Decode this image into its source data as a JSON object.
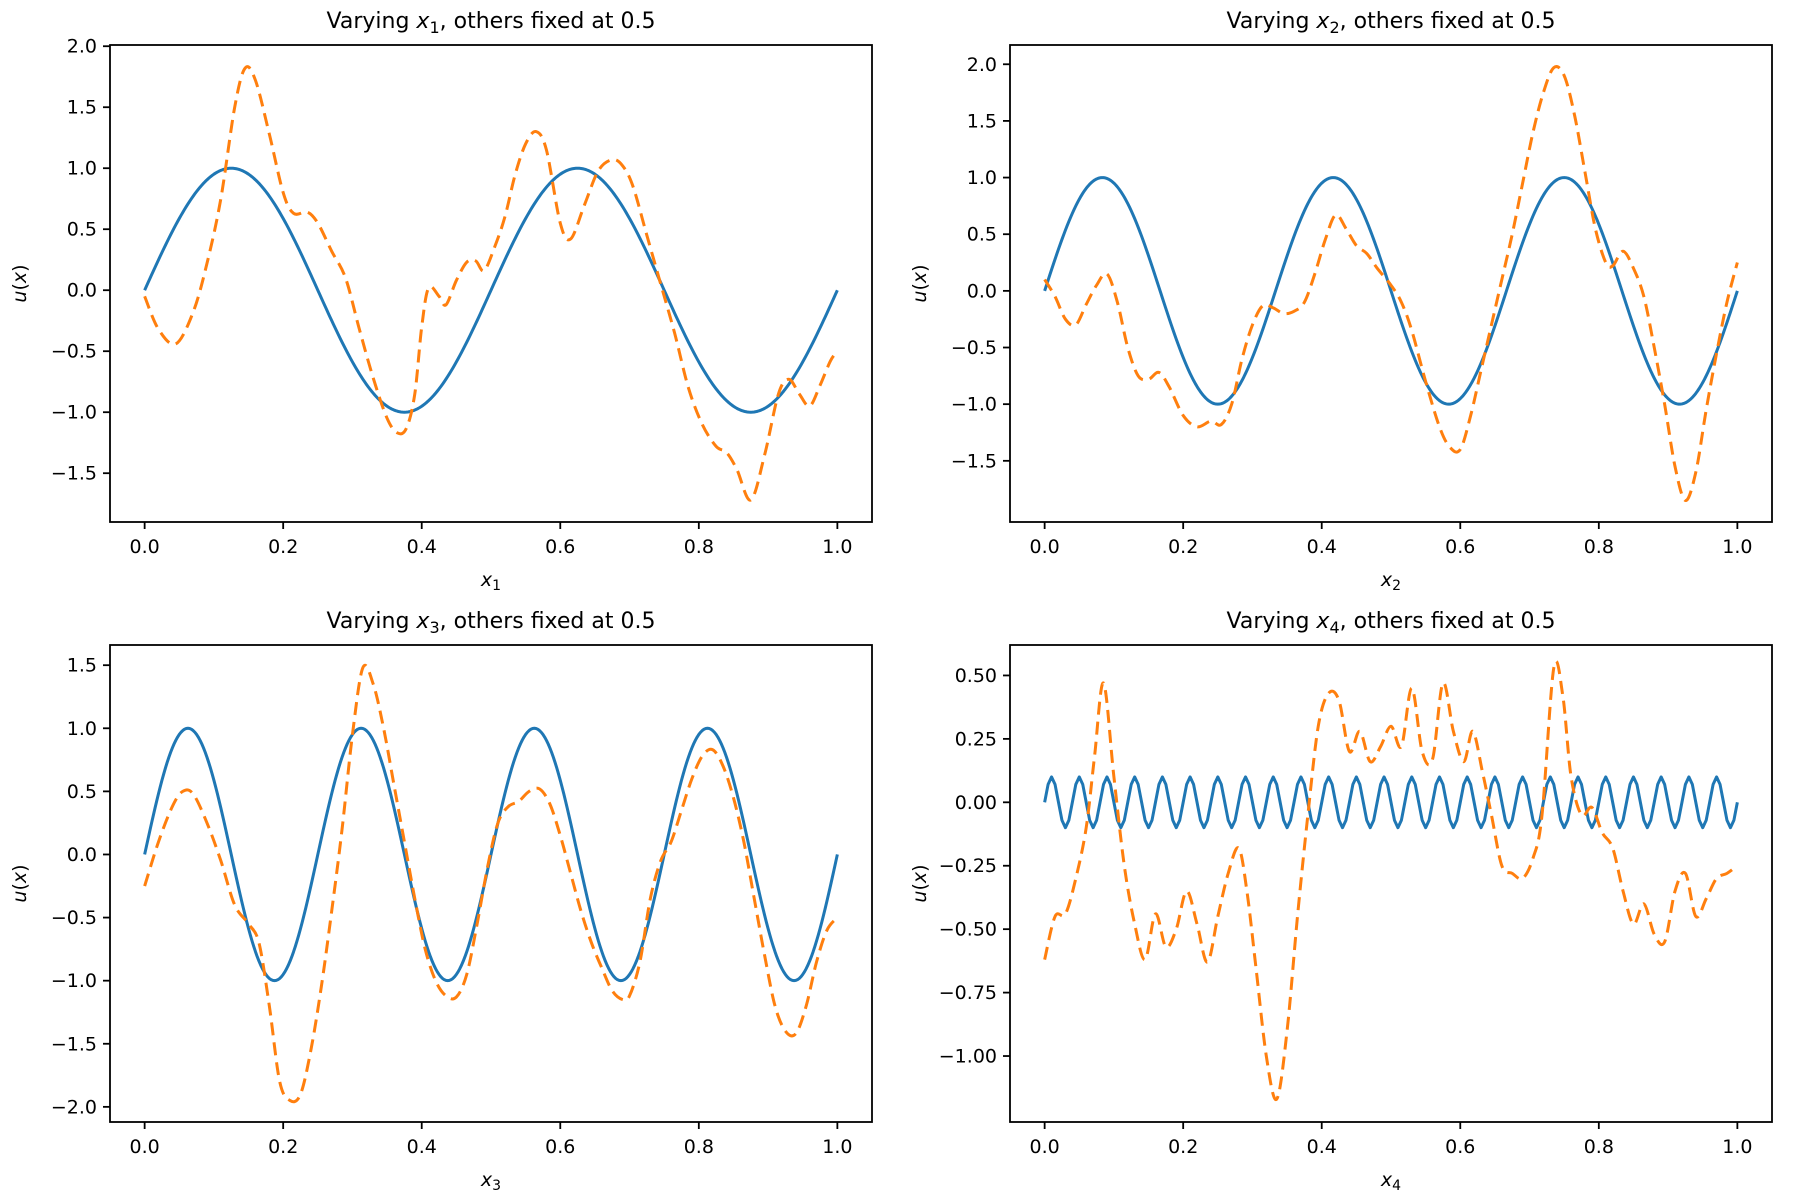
{
  "figure": {
    "background": "#ffffff",
    "axis_color": "#000000",
    "text_color": "#000000",
    "line_colors": {
      "solid": "#1f77b4",
      "dashed": "#ff7f0e"
    }
  },
  "chart_data": [
    {
      "type": "line",
      "title": {
        "prefix": "Varying ",
        "variable": "x",
        "subscript": "1",
        "suffix": ", others fixed at 0.5"
      },
      "xlabel": {
        "variable": "x",
        "subscript": "1"
      },
      "ylabel": "u(x)",
      "xlim": [
        -0.05,
        1.05
      ],
      "ylim": [
        -1.9,
        2.01
      ],
      "xticks": [
        0.0,
        0.2,
        0.4,
        0.6,
        0.8,
        1.0
      ],
      "yticks": [
        -1.5,
        -1.0,
        -0.5,
        0.0,
        0.5,
        1.0,
        1.5,
        2.0
      ],
      "ytick_decimals": 1,
      "grid": false,
      "legend": null,
      "series": [
        {
          "id": "solid-blue-line",
          "style": "solid",
          "color": "#1f77b4",
          "kind": "sine",
          "amplitude": 1,
          "cycles": 2,
          "samples": 401
        },
        {
          "id": "dashed-orange-line",
          "style": "dashed",
          "color": "#ff7f0e",
          "kind": "points",
          "x": [
            0.0,
            0.02,
            0.045,
            0.07,
            0.09,
            0.11,
            0.13,
            0.145,
            0.16,
            0.18,
            0.2,
            0.215,
            0.235,
            0.25,
            0.27,
            0.29,
            0.31,
            0.33,
            0.35,
            0.365,
            0.378,
            0.39,
            0.4,
            0.41,
            0.425,
            0.435,
            0.45,
            0.465,
            0.478,
            0.49,
            0.505,
            0.52,
            0.535,
            0.55,
            0.565,
            0.58,
            0.6,
            0.615,
            0.635,
            0.655,
            0.675,
            0.69,
            0.705,
            0.725,
            0.745,
            0.765,
            0.785,
            0.805,
            0.825,
            0.84,
            0.855,
            0.875,
            0.895,
            0.915,
            0.93,
            0.945,
            0.96,
            0.975,
            0.99,
            1.0
          ],
          "y": [
            -0.05,
            -0.32,
            -0.44,
            -0.18,
            0.22,
            0.75,
            1.5,
            1.82,
            1.72,
            1.28,
            0.8,
            0.63,
            0.64,
            0.55,
            0.32,
            0.1,
            -0.32,
            -0.72,
            -1.05,
            -1.17,
            -1.13,
            -0.85,
            -0.3,
            0.02,
            -0.05,
            -0.12,
            0.08,
            0.23,
            0.24,
            0.16,
            0.35,
            0.6,
            0.95,
            1.2,
            1.3,
            1.15,
            0.55,
            0.42,
            0.7,
            0.98,
            1.07,
            1.02,
            0.85,
            0.45,
            0.05,
            -0.35,
            -0.8,
            -1.1,
            -1.28,
            -1.33,
            -1.47,
            -1.72,
            -1.35,
            -0.85,
            -0.73,
            -0.85,
            -0.95,
            -0.78,
            -0.58,
            -0.5
          ]
        }
      ]
    },
    {
      "type": "line",
      "title": {
        "prefix": "Varying ",
        "variable": "x",
        "subscript": "2",
        "suffix": ", others fixed at 0.5"
      },
      "xlabel": {
        "variable": "x",
        "subscript": "2"
      },
      "ylabel": "u(x)",
      "xlim": [
        -0.05,
        1.05
      ],
      "ylim": [
        -2.04,
        2.17
      ],
      "xticks": [
        0.0,
        0.2,
        0.4,
        0.6,
        0.8,
        1.0
      ],
      "yticks": [
        -1.5,
        -1.0,
        -0.5,
        0.0,
        0.5,
        1.0,
        1.5,
        2.0
      ],
      "ytick_decimals": 1,
      "grid": false,
      "legend": null,
      "series": [
        {
          "id": "solid-blue-line",
          "style": "solid",
          "color": "#1f77b4",
          "kind": "sine",
          "amplitude": 1,
          "cycles": 3,
          "samples": 401
        },
        {
          "id": "dashed-orange-line",
          "style": "dashed",
          "color": "#ff7f0e",
          "kind": "points",
          "x": [
            0.0,
            0.015,
            0.03,
            0.045,
            0.06,
            0.075,
            0.09,
            0.105,
            0.12,
            0.135,
            0.15,
            0.165,
            0.18,
            0.2,
            0.22,
            0.24,
            0.255,
            0.27,
            0.285,
            0.3,
            0.315,
            0.33,
            0.345,
            0.36,
            0.375,
            0.39,
            0.405,
            0.42,
            0.435,
            0.45,
            0.465,
            0.48,
            0.5,
            0.515,
            0.53,
            0.55,
            0.57,
            0.585,
            0.6,
            0.615,
            0.63,
            0.645,
            0.66,
            0.675,
            0.69,
            0.705,
            0.72,
            0.735,
            0.75,
            0.765,
            0.78,
            0.795,
            0.81,
            0.82,
            0.835,
            0.85,
            0.865,
            0.88,
            0.895,
            0.91,
            0.925,
            0.94,
            0.955,
            0.97,
            0.985,
            1.0
          ],
          "y": [
            0.1,
            -0.05,
            -0.25,
            -0.3,
            -0.12,
            0.05,
            0.15,
            -0.1,
            -0.5,
            -0.75,
            -0.78,
            -0.72,
            -0.85,
            -1.1,
            -1.2,
            -1.15,
            -1.18,
            -1.0,
            -0.6,
            -0.3,
            -0.13,
            -0.15,
            -0.2,
            -0.18,
            -0.1,
            0.15,
            0.45,
            0.67,
            0.55,
            0.4,
            0.33,
            0.2,
            0.05,
            -0.1,
            -0.35,
            -0.8,
            -1.2,
            -1.38,
            -1.4,
            -1.1,
            -0.7,
            -0.3,
            0.1,
            0.5,
            0.95,
            1.4,
            1.75,
            1.97,
            1.9,
            1.55,
            1.05,
            0.55,
            0.25,
            0.22,
            0.35,
            0.2,
            -0.05,
            -0.5,
            -1.0,
            -1.55,
            -1.85,
            -1.6,
            -1.05,
            -0.55,
            -0.1,
            0.25
          ]
        }
      ]
    },
    {
      "type": "line",
      "title": {
        "prefix": "Varying ",
        "variable": "x",
        "subscript": "3",
        "suffix": ", others fixed at 0.5"
      },
      "xlabel": {
        "variable": "x",
        "subscript": "3"
      },
      "ylabel": "u(x)",
      "xlim": [
        -0.05,
        1.05
      ],
      "ylim": [
        -2.12,
        1.66
      ],
      "xticks": [
        0.0,
        0.2,
        0.4,
        0.6,
        0.8,
        1.0
      ],
      "yticks": [
        -2.0,
        -1.5,
        -1.0,
        -0.5,
        0.0,
        0.5,
        1.0,
        1.5
      ],
      "ytick_decimals": 1,
      "grid": false,
      "legend": null,
      "series": [
        {
          "id": "solid-blue-line",
          "style": "solid",
          "color": "#1f77b4",
          "kind": "sine",
          "amplitude": 1,
          "cycles": 4,
          "samples": 401
        },
        {
          "id": "dashed-orange-line",
          "style": "dashed",
          "color": "#ff7f0e",
          "kind": "points",
          "x": [
            0.0,
            0.02,
            0.04,
            0.055,
            0.07,
            0.09,
            0.11,
            0.13,
            0.15,
            0.165,
            0.18,
            0.195,
            0.21,
            0.225,
            0.24,
            0.255,
            0.27,
            0.285,
            0.3,
            0.315,
            0.33,
            0.345,
            0.36,
            0.375,
            0.39,
            0.405,
            0.42,
            0.435,
            0.45,
            0.465,
            0.48,
            0.495,
            0.51,
            0.525,
            0.54,
            0.555,
            0.57,
            0.585,
            0.6,
            0.615,
            0.63,
            0.645,
            0.66,
            0.675,
            0.69,
            0.7,
            0.715,
            0.73,
            0.745,
            0.76,
            0.775,
            0.79,
            0.805,
            0.82,
            0.835,
            0.85,
            0.865,
            0.88,
            0.895,
            0.91,
            0.925,
            0.94,
            0.955,
            0.97,
            0.985,
            1.0
          ],
          "y": [
            -0.25,
            0.1,
            0.38,
            0.5,
            0.48,
            0.25,
            -0.05,
            -0.4,
            -0.55,
            -0.7,
            -1.2,
            -1.8,
            -1.95,
            -1.9,
            -1.55,
            -1.05,
            -0.45,
            0.2,
            0.95,
            1.48,
            1.35,
            1.0,
            0.55,
            0.1,
            -0.35,
            -0.75,
            -1.0,
            -1.12,
            -1.13,
            -0.95,
            -0.55,
            -0.1,
            0.25,
            0.38,
            0.42,
            0.5,
            0.52,
            0.4,
            0.15,
            -0.15,
            -0.45,
            -0.7,
            -0.9,
            -1.08,
            -1.15,
            -1.12,
            -0.85,
            -0.35,
            -0.05,
            0.1,
            0.35,
            0.6,
            0.78,
            0.83,
            0.7,
            0.45,
            0.1,
            -0.35,
            -0.8,
            -1.2,
            -1.4,
            -1.42,
            -1.2,
            -0.85,
            -0.6,
            -0.5
          ]
        }
      ]
    },
    {
      "type": "line",
      "title": {
        "prefix": "Varying ",
        "variable": "x",
        "subscript": "4",
        "suffix": ", others fixed at 0.5"
      },
      "xlabel": {
        "variable": "x",
        "subscript": "4"
      },
      "ylabel": "u(x)",
      "xlim": [
        -0.05,
        1.05
      ],
      "ylim": [
        -1.26,
        0.62
      ],
      "xticks": [
        0.0,
        0.2,
        0.4,
        0.6,
        0.8,
        1.0
      ],
      "yticks": [
        -1.0,
        -0.75,
        -0.5,
        -0.25,
        0.0,
        0.25,
        0.5
      ],
      "ytick_decimals": 2,
      "grid": false,
      "legend": null,
      "series": [
        {
          "id": "solid-blue-line",
          "style": "solid",
          "color": "#1f77b4",
          "kind": "sine",
          "amplitude": 0.1,
          "cycles": 25,
          "samples": 201
        },
        {
          "id": "dashed-orange-line",
          "style": "dashed",
          "color": "#ff7f0e",
          "kind": "points",
          "x": [
            0.0,
            0.015,
            0.03,
            0.045,
            0.06,
            0.072,
            0.085,
            0.1,
            0.115,
            0.13,
            0.145,
            0.16,
            0.175,
            0.19,
            0.205,
            0.22,
            0.235,
            0.25,
            0.265,
            0.28,
            0.292,
            0.305,
            0.32,
            0.335,
            0.35,
            0.365,
            0.38,
            0.395,
            0.41,
            0.425,
            0.44,
            0.455,
            0.47,
            0.485,
            0.5,
            0.515,
            0.53,
            0.545,
            0.56,
            0.575,
            0.59,
            0.605,
            0.618,
            0.632,
            0.645,
            0.66,
            0.675,
            0.69,
            0.705,
            0.718,
            0.735,
            0.748,
            0.76,
            0.775,
            0.79,
            0.805,
            0.82,
            0.835,
            0.85,
            0.865,
            0.88,
            0.895,
            0.91,
            0.925,
            0.94,
            0.955,
            0.97,
            0.985,
            1.0
          ],
          "y": [
            -0.62,
            -0.45,
            -0.44,
            -0.3,
            -0.1,
            0.18,
            0.47,
            0.1,
            -0.25,
            -0.48,
            -0.62,
            -0.44,
            -0.57,
            -0.5,
            -0.35,
            -0.48,
            -0.63,
            -0.45,
            -0.28,
            -0.18,
            -0.35,
            -0.65,
            -1.0,
            -1.17,
            -0.9,
            -0.45,
            -0.05,
            0.3,
            0.43,
            0.4,
            0.2,
            0.28,
            0.16,
            0.22,
            0.3,
            0.22,
            0.45,
            0.2,
            0.17,
            0.47,
            0.28,
            0.16,
            0.28,
            0.12,
            -0.05,
            -0.25,
            -0.28,
            -0.3,
            -0.22,
            -0.05,
            0.53,
            0.42,
            0.1,
            -0.05,
            -0.02,
            -0.12,
            -0.18,
            -0.35,
            -0.48,
            -0.4,
            -0.52,
            -0.55,
            -0.35,
            -0.28,
            -0.45,
            -0.38,
            -0.3,
            -0.28,
            -0.25
          ]
        }
      ]
    }
  ]
}
